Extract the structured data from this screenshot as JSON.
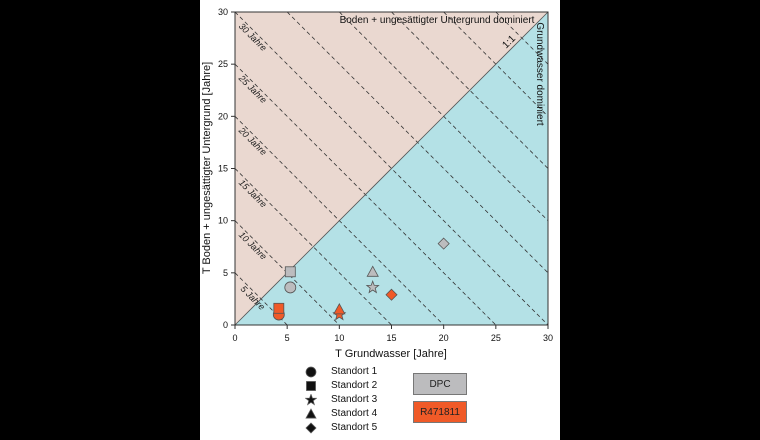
{
  "chart_data": {
    "type": "scatter",
    "xlabel": "T Grundwasser [Jahre]",
    "ylabel": "T Boden + ungesättigter Untergrund [Jahre]",
    "xlim": [
      0,
      30
    ],
    "ylim": [
      0,
      30
    ],
    "xticks": [
      0,
      5,
      10,
      15,
      20,
      25,
      30
    ],
    "yticks": [
      0,
      5,
      10,
      15,
      20,
      25,
      30
    ],
    "region_labels": {
      "upper": "Boden + ungesättigter Untergrund dominiert",
      "lower": "Grundwasser dominiert",
      "diagonal": "1:1"
    },
    "isolines": [
      {
        "value": 5,
        "label": "5 Jahre"
      },
      {
        "value": 10,
        "label": "10 Jahre"
      },
      {
        "value": 15,
        "label": "15 Jahre"
      },
      {
        "value": 20,
        "label": "20 Jahre"
      },
      {
        "value": 25,
        "label": "25 Jahre"
      },
      {
        "value": 30,
        "label": "30 Jahre"
      },
      {
        "value": 35,
        "label": ""
      },
      {
        "value": 40,
        "label": ""
      },
      {
        "value": 45,
        "label": ""
      },
      {
        "value": 50,
        "label": ""
      },
      {
        "value": 55,
        "label": ""
      }
    ],
    "colors": {
      "upper_region": "#ead8d0",
      "lower_region": "#b4e1e6",
      "DPC": "#bcbcbe",
      "R471811": "#f05a28"
    },
    "series": [
      {
        "name": "DPC",
        "points": [
          {
            "x": 5.3,
            "y": 3.6,
            "marker": "circle"
          },
          {
            "x": 5.3,
            "y": 5.1,
            "marker": "square"
          },
          {
            "x": 13.2,
            "y": 3.6,
            "marker": "star"
          },
          {
            "x": 13.2,
            "y": 5.1,
            "marker": "triangle"
          },
          {
            "x": 20.0,
            "y": 7.8,
            "marker": "diamond"
          }
        ]
      },
      {
        "name": "R471811",
        "points": [
          {
            "x": 4.2,
            "y": 1.0,
            "marker": "circle"
          },
          {
            "x": 4.2,
            "y": 1.6,
            "marker": "square"
          },
          {
            "x": 10.0,
            "y": 1.0,
            "marker": "star"
          },
          {
            "x": 10.0,
            "y": 1.5,
            "marker": "triangle"
          },
          {
            "x": 15.0,
            "y": 2.9,
            "marker": "diamond"
          }
        ]
      }
    ]
  },
  "legend": {
    "markers": [
      {
        "label": "Standort 1",
        "icon": "circle"
      },
      {
        "label": "Standort 2",
        "icon": "square"
      },
      {
        "label": "Standort 3",
        "icon": "star"
      },
      {
        "label": "Standort 4",
        "icon": "triangle"
      },
      {
        "label": "Standort 5",
        "icon": "diamond"
      }
    ],
    "samples": [
      {
        "label": "DPC",
        "color": "#bcbcbe"
      },
      {
        "label": "R471811",
        "color": "#f05a28"
      }
    ]
  }
}
